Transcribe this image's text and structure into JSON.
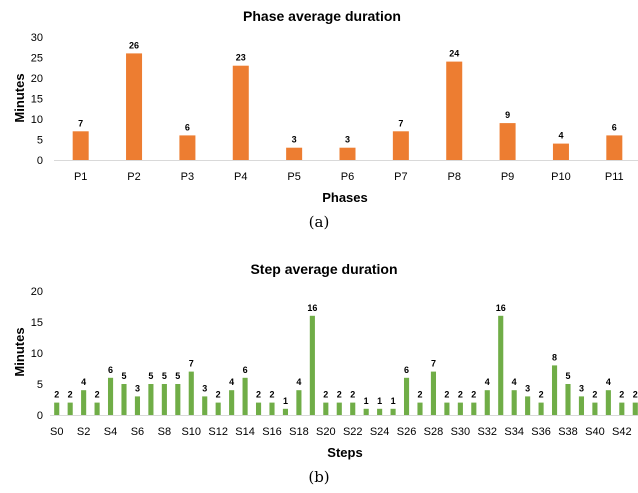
{
  "chart_data": [
    {
      "type": "bar",
      "title": "Phase average duration",
      "xlabel": "Phases",
      "ylabel": "Minutes",
      "caption": "(a)",
      "color": "#ED7D31",
      "ylim": [
        0,
        30
      ],
      "yticks": [
        0,
        5,
        10,
        15,
        20,
        25,
        30
      ],
      "grid": false,
      "legend": "none",
      "categories": [
        "P1",
        "P2",
        "P3",
        "P4",
        "P5",
        "P6",
        "P7",
        "P8",
        "P9",
        "P10",
        "P11"
      ],
      "tick_labels": [
        "P1",
        "P2",
        "P3",
        "P4",
        "P5",
        "P6",
        "P7",
        "P8",
        "P9",
        "P10",
        "P11"
      ],
      "values": [
        7,
        26,
        6,
        23,
        3,
        3,
        7,
        24,
        9,
        4,
        6
      ]
    },
    {
      "type": "bar",
      "title": "Step average duration",
      "xlabel": "Steps",
      "ylabel": "Minutes",
      "caption": "(b)",
      "color": "#70AD47",
      "ylim": [
        0,
        20
      ],
      "yticks": [
        0,
        5,
        10,
        15,
        20
      ],
      "grid": false,
      "legend": "none",
      "categories": [
        "S0",
        "S1",
        "S2",
        "S3",
        "S4",
        "S5",
        "S6",
        "S7",
        "S8",
        "S9",
        "S10",
        "S11",
        "S12",
        "S13",
        "S14",
        "S15",
        "S16",
        "S17",
        "S18",
        "S19",
        "S20",
        "S21",
        "S22",
        "S23",
        "S24",
        "S25",
        "S26",
        "S27",
        "S28",
        "S29",
        "S30",
        "S31",
        "S32",
        "S33",
        "S34",
        "S35",
        "S36",
        "S37",
        "S38",
        "S39",
        "S40",
        "S41",
        "S42",
        "S43"
      ],
      "tick_labels": [
        "S0",
        "",
        "S2",
        "",
        "S4",
        "",
        "S6",
        "",
        "S8",
        "",
        "S10",
        "",
        "S12",
        "",
        "S14",
        "",
        "S16",
        "",
        "S18",
        "",
        "S20",
        "",
        "S22",
        "",
        "S24",
        "",
        "S26",
        "",
        "S28",
        "",
        "S30",
        "",
        "S32",
        "",
        "S34",
        "",
        "S36",
        "",
        "S38",
        "",
        "S40",
        "",
        "S42",
        ""
      ],
      "values": [
        2,
        2,
        4,
        2,
        6,
        5,
        3,
        5,
        5,
        5,
        7,
        3,
        2,
        4,
        6,
        2,
        2,
        1,
        4,
        16,
        2,
        2,
        2,
        1,
        1,
        1,
        6,
        2,
        7,
        2,
        2,
        2,
        4,
        16,
        4,
        3,
        2,
        8,
        5,
        3,
        2,
        4,
        2,
        2
      ]
    }
  ]
}
